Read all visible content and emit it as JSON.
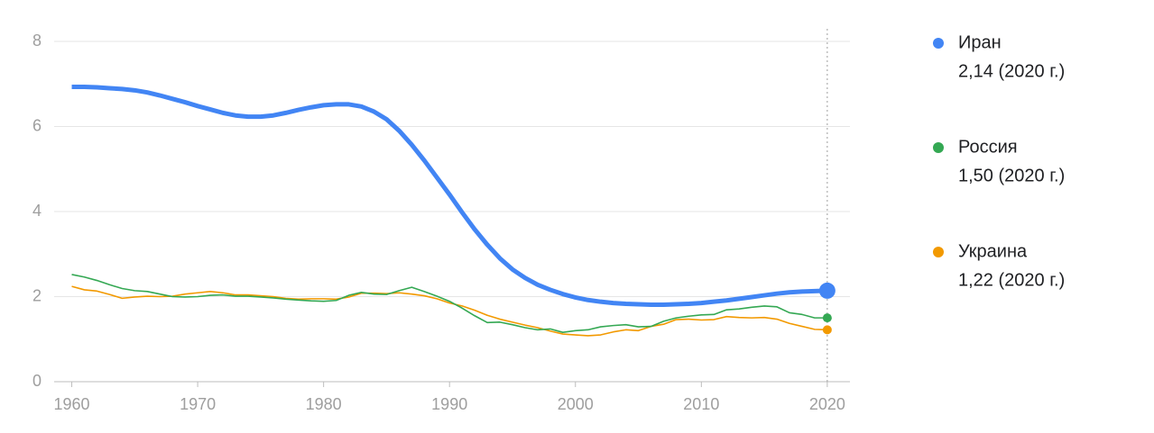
{
  "chart_data": {
    "type": "line",
    "x": [
      1960,
      1961,
      1962,
      1963,
      1964,
      1965,
      1966,
      1967,
      1968,
      1969,
      1970,
      1971,
      1972,
      1973,
      1974,
      1975,
      1976,
      1977,
      1978,
      1979,
      1980,
      1981,
      1982,
      1983,
      1984,
      1985,
      1986,
      1987,
      1988,
      1989,
      1990,
      1991,
      1992,
      1993,
      1994,
      1995,
      1996,
      1997,
      1998,
      1999,
      2000,
      2001,
      2002,
      2003,
      2004,
      2005,
      2006,
      2007,
      2008,
      2009,
      2010,
      2011,
      2012,
      2013,
      2014,
      2015,
      2016,
      2017,
      2018,
      2019,
      2020
    ],
    "series": [
      {
        "name": "Иран",
        "legend_label": "2,14 (2020 г.)",
        "color": "#4285f4",
        "values": [
          6.93,
          6.93,
          6.92,
          6.9,
          6.88,
          6.85,
          6.8,
          6.73,
          6.65,
          6.57,
          6.48,
          6.4,
          6.32,
          6.26,
          6.23,
          6.23,
          6.26,
          6.32,
          6.39,
          6.45,
          6.5,
          6.52,
          6.52,
          6.47,
          6.35,
          6.17,
          5.9,
          5.57,
          5.2,
          4.8,
          4.4,
          3.98,
          3.58,
          3.22,
          2.9,
          2.64,
          2.44,
          2.28,
          2.16,
          2.06,
          1.98,
          1.92,
          1.88,
          1.85,
          1.83,
          1.82,
          1.81,
          1.81,
          1.82,
          1.83,
          1.85,
          1.88,
          1.91,
          1.95,
          1.99,
          2.03,
          2.07,
          2.1,
          2.12,
          2.13,
          2.14
        ]
      },
      {
        "name": "Россия",
        "legend_label": "1,50 (2020 г.)",
        "color": "#34a853",
        "values": [
          2.52,
          2.46,
          2.38,
          2.28,
          2.19,
          2.14,
          2.12,
          2.06,
          2.0,
          1.99,
          2.0,
          2.03,
          2.04,
          2.01,
          2.01,
          1.99,
          1.97,
          1.94,
          1.92,
          1.9,
          1.89,
          1.91,
          2.03,
          2.1,
          2.06,
          2.05,
          2.14,
          2.22,
          2.12,
          2.01,
          1.89,
          1.73,
          1.55,
          1.39,
          1.4,
          1.34,
          1.27,
          1.22,
          1.24,
          1.16,
          1.2,
          1.22,
          1.29,
          1.32,
          1.34,
          1.29,
          1.3,
          1.42,
          1.5,
          1.54,
          1.57,
          1.58,
          1.69,
          1.71,
          1.75,
          1.78,
          1.76,
          1.62,
          1.58,
          1.5,
          1.5
        ]
      },
      {
        "name": "Украина",
        "legend_label": "1,22 (2020 г.)",
        "color": "#f29900",
        "values": [
          2.24,
          2.16,
          2.13,
          2.05,
          1.96,
          1.99,
          2.01,
          2.0,
          2.01,
          2.06,
          2.09,
          2.12,
          2.09,
          2.04,
          2.04,
          2.02,
          2.0,
          1.96,
          1.94,
          1.95,
          1.95,
          1.94,
          1.99,
          2.08,
          2.08,
          2.07,
          2.09,
          2.06,
          2.02,
          1.95,
          1.85,
          1.78,
          1.68,
          1.56,
          1.47,
          1.4,
          1.33,
          1.27,
          1.19,
          1.12,
          1.1,
          1.08,
          1.1,
          1.17,
          1.22,
          1.2,
          1.3,
          1.35,
          1.46,
          1.47,
          1.45,
          1.46,
          1.53,
          1.51,
          1.5,
          1.51,
          1.47,
          1.37,
          1.3,
          1.23,
          1.22
        ]
      }
    ],
    "xlim": [
      1958.6,
      2021.8
    ],
    "xticks": [
      1960,
      1970,
      1980,
      1990,
      2000,
      2010,
      2020
    ],
    "ylim": [
      0,
      8
    ],
    "yticks": [
      0,
      2,
      4,
      6,
      8
    ],
    "grid": true
  }
}
